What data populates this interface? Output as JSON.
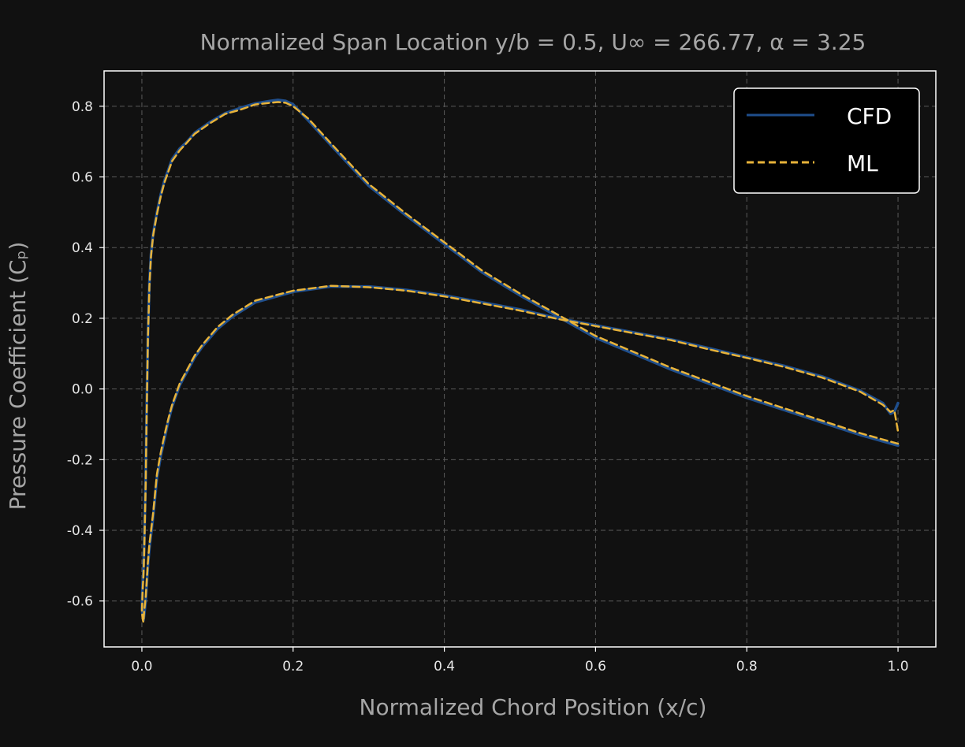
{
  "chart_data": {
    "type": "line",
    "title": "Normalized Span Location y/b = 0.5, U∞ = 266.77, α = 3.25",
    "xlabel": "Normalized Chord Position (x/c)",
    "ylabel": "Pressure Coefficient (Cₚ)",
    "xlim": [
      -0.05,
      1.05
    ],
    "ylim": [
      -0.73,
      0.9
    ],
    "xticks": [
      0.0,
      0.2,
      0.4,
      0.6,
      0.8,
      1.0
    ],
    "xtick_labels": [
      "0.0",
      "0.2",
      "0.4",
      "0.6",
      "0.8",
      "1.0"
    ],
    "yticks": [
      -0.6,
      -0.4,
      -0.2,
      0.0,
      0.2,
      0.4,
      0.6,
      0.8
    ],
    "ytick_labels": [
      "-0.6",
      "-0.4",
      "-0.2",
      "0.0",
      "0.2",
      "0.4",
      "0.6",
      "0.8"
    ],
    "grid": true,
    "legend_position": "top-right",
    "background_color": "#111111",
    "series": [
      {
        "name": "CFD",
        "color": "#1f4e8c",
        "style": "solid",
        "x": [
          1.0,
          0.95,
          0.9,
          0.85,
          0.8,
          0.75,
          0.7,
          0.65,
          0.6,
          0.55,
          0.5,
          0.45,
          0.4,
          0.35,
          0.3,
          0.25,
          0.22,
          0.2,
          0.19,
          0.18,
          0.17,
          0.15,
          0.13,
          0.11,
          0.09,
          0.07,
          0.06,
          0.05,
          0.04,
          0.035,
          0.03,
          0.025,
          0.02,
          0.015,
          0.012,
          0.01,
          0.008,
          0.006,
          0.005,
          0.004,
          0.003,
          0.002,
          0.001,
          0.0,
          0.001,
          0.002,
          0.003,
          0.005,
          0.008,
          0.01,
          0.015,
          0.02,
          0.025,
          0.03,
          0.035,
          0.04,
          0.05,
          0.06,
          0.07,
          0.08,
          0.1,
          0.12,
          0.15,
          0.2,
          0.25,
          0.3,
          0.35,
          0.4,
          0.45,
          0.5,
          0.55,
          0.6,
          0.65,
          0.7,
          0.75,
          0.8,
          0.85,
          0.9,
          0.95,
          0.98,
          0.99,
          0.995,
          1.0
        ],
        "y": [
          -0.16,
          -0.13,
          -0.095,
          -0.06,
          -0.025,
          0.015,
          0.055,
          0.1,
          0.145,
          0.205,
          0.265,
          0.33,
          0.41,
          0.49,
          0.575,
          0.69,
          0.76,
          0.805,
          0.815,
          0.818,
          0.815,
          0.808,
          0.795,
          0.78,
          0.755,
          0.725,
          0.7,
          0.68,
          0.65,
          0.62,
          0.59,
          0.55,
          0.5,
          0.44,
          0.38,
          0.3,
          0.15,
          -0.1,
          -0.25,
          -0.35,
          -0.45,
          -0.52,
          -0.55,
          -0.62,
          -0.64,
          -0.655,
          -0.64,
          -0.6,
          -0.5,
          -0.45,
          -0.36,
          -0.25,
          -0.19,
          -0.14,
          -0.09,
          -0.05,
          0.01,
          0.05,
          0.09,
          0.12,
          0.17,
          0.205,
          0.245,
          0.275,
          0.29,
          0.29,
          0.28,
          0.265,
          0.245,
          0.225,
          0.2,
          0.18,
          0.16,
          0.14,
          0.115,
          0.09,
          0.065,
          0.035,
          -0.005,
          -0.04,
          -0.07,
          -0.065,
          -0.04
        ]
      },
      {
        "name": "ML",
        "color": "#e8b33a",
        "style": "dashed",
        "x": [
          1.0,
          0.95,
          0.9,
          0.85,
          0.8,
          0.75,
          0.7,
          0.65,
          0.6,
          0.55,
          0.5,
          0.45,
          0.4,
          0.35,
          0.3,
          0.25,
          0.22,
          0.2,
          0.19,
          0.18,
          0.17,
          0.15,
          0.13,
          0.11,
          0.09,
          0.07,
          0.06,
          0.05,
          0.04,
          0.035,
          0.03,
          0.025,
          0.02,
          0.015,
          0.012,
          0.01,
          0.008,
          0.006,
          0.005,
          0.004,
          0.003,
          0.002,
          0.001,
          0.0,
          0.001,
          0.002,
          0.003,
          0.005,
          0.008,
          0.01,
          0.015,
          0.02,
          0.025,
          0.03,
          0.035,
          0.04,
          0.05,
          0.06,
          0.07,
          0.08,
          0.1,
          0.12,
          0.15,
          0.2,
          0.25,
          0.3,
          0.35,
          0.4,
          0.45,
          0.5,
          0.55,
          0.6,
          0.65,
          0.7,
          0.75,
          0.8,
          0.85,
          0.9,
          0.95,
          0.98,
          0.99,
          0.995,
          1.0
        ],
        "y": [
          -0.155,
          -0.125,
          -0.09,
          -0.055,
          -0.02,
          0.02,
          0.06,
          0.105,
          0.15,
          0.21,
          0.27,
          0.335,
          0.415,
          0.495,
          0.58,
          0.695,
          0.765,
          0.8,
          0.81,
          0.812,
          0.81,
          0.805,
          0.79,
          0.778,
          0.752,
          0.722,
          0.698,
          0.675,
          0.645,
          0.615,
          0.585,
          0.545,
          0.495,
          0.435,
          0.375,
          0.29,
          0.14,
          -0.12,
          -0.27,
          -0.37,
          -0.47,
          -0.53,
          -0.57,
          -0.63,
          -0.65,
          -0.66,
          -0.63,
          -0.59,
          -0.49,
          -0.44,
          -0.35,
          -0.24,
          -0.18,
          -0.13,
          -0.085,
          -0.045,
          0.015,
          0.055,
          0.095,
          0.125,
          0.175,
          0.21,
          0.25,
          0.278,
          0.292,
          0.288,
          0.278,
          0.262,
          0.242,
          0.222,
          0.198,
          0.178,
          0.158,
          0.138,
          0.112,
          0.088,
          0.062,
          0.032,
          -0.008,
          -0.045,
          -0.065,
          -0.06,
          -0.12
        ]
      }
    ]
  }
}
